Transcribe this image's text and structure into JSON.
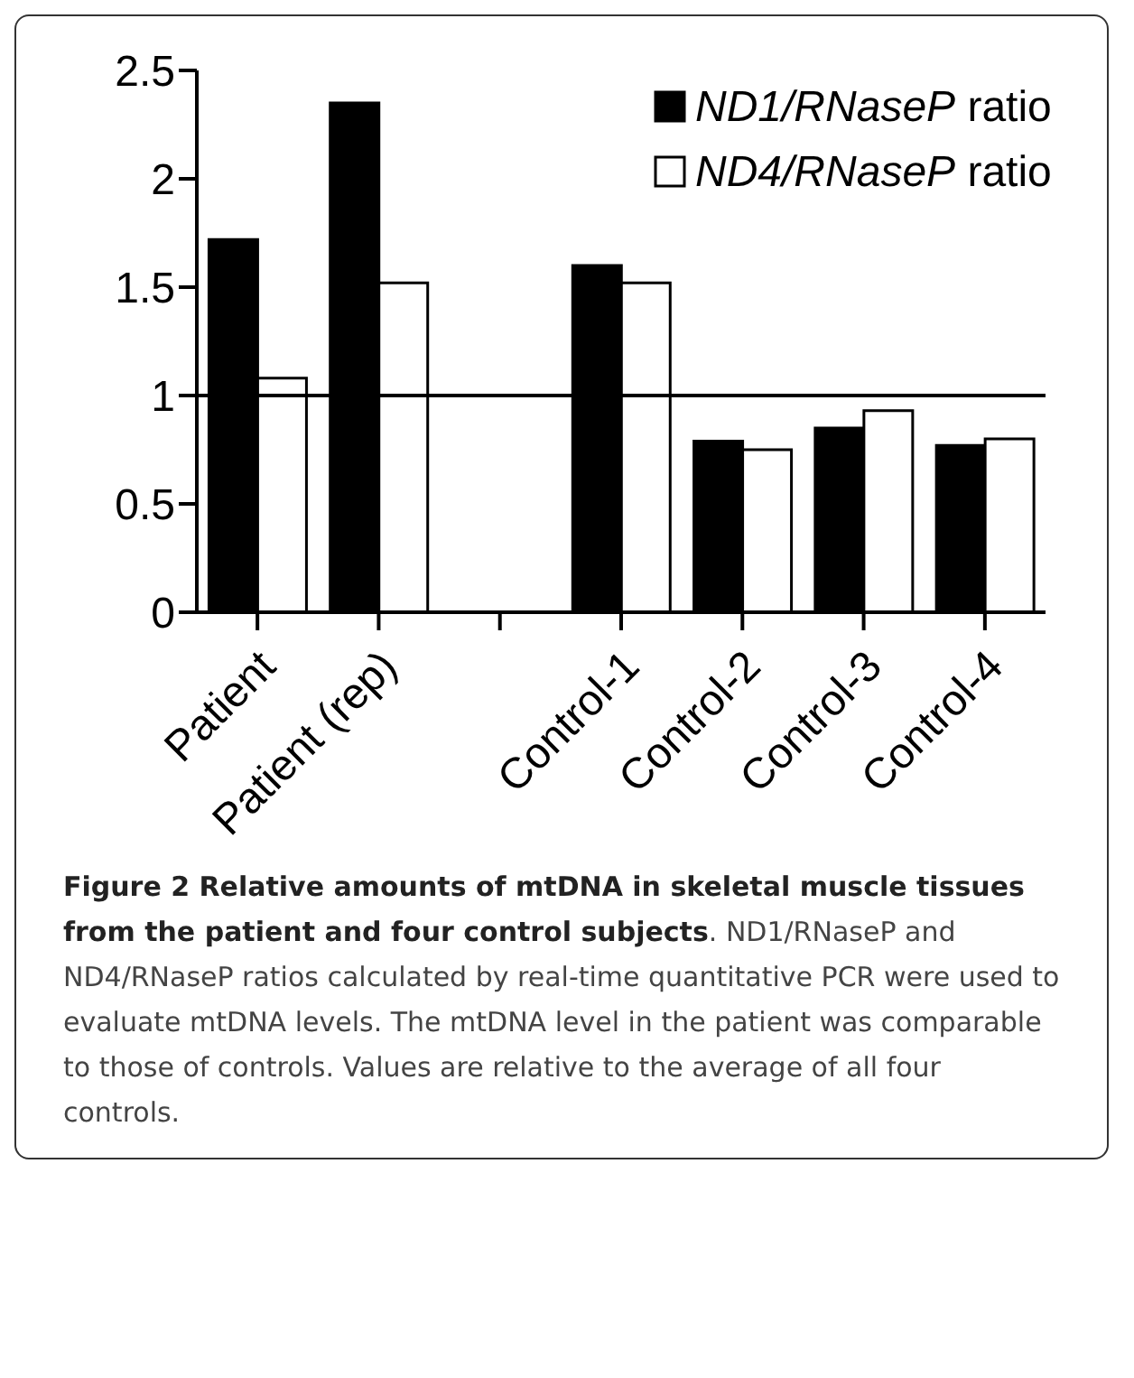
{
  "chart_data": {
    "type": "bar",
    "title": "Figure 2 Relative amounts of mtDNA in skeletal muscle tissues from the patient and four control subjects",
    "annotations": [
      ". ND1/RNaseP and ND4/RNaseP ratios calculated by real-time quantitative PCR were used to evaluate mtDNA levels. The mtDNA level in the patient was comparable to those of controls. Values are relative to the average of all four controls."
    ],
    "categories": [
      "Patient",
      "Patient (rep)",
      null,
      "Control-1",
      "Control-2",
      "Control-3",
      "Control-4"
    ],
    "series": [
      {
        "name": "ND1/RNaseP ratio",
        "color": "#000000",
        "values": [
          1.72,
          2.35,
          null,
          1.6,
          0.79,
          0.85,
          0.77
        ]
      },
      {
        "name": "ND4/RNaseP ratio",
        "color": "#ffffff",
        "values": [
          1.08,
          1.52,
          null,
          1.52,
          0.75,
          0.93,
          0.8
        ]
      }
    ],
    "ylim": [
      0,
      2.5
    ],
    "yticks": [
      0,
      0.5,
      1,
      1.5,
      2,
      2.5
    ],
    "ref_lines": [
      {
        "axis": "y",
        "value": 1,
        "color": "#000000"
      }
    ],
    "grid": false,
    "legend": "top right"
  }
}
